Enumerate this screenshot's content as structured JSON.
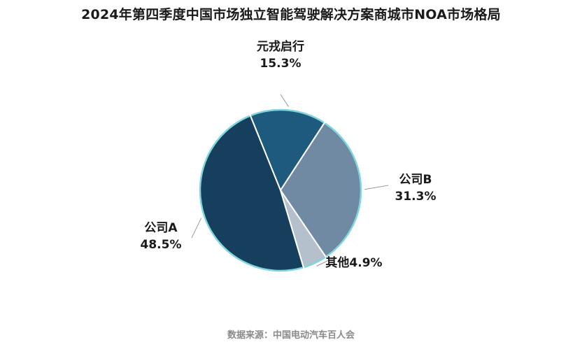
{
  "title": "2024年第四季度中国市场独立智能驾驶解决方案商城市NOA市场格局",
  "source": "数据来源：中国电动汽车百人会",
  "chart_data": {
    "type": "pie",
    "title": "2024年第四季度中国市场独立智能驾驶解决方案商城市NOA市场格局",
    "slices": [
      {
        "name": "元戎启行",
        "value": 15.3,
        "value_label": "15.3%",
        "color": "#1d5a7d"
      },
      {
        "name": "公司B",
        "value": 31.3,
        "value_label": "31.3%",
        "color": "#6f8aa2"
      },
      {
        "name": "其他",
        "value": 4.9,
        "value_label": "4.9%",
        "color": "#b4c0cb"
      },
      {
        "name": "公司A",
        "value": 48.5,
        "value_label": "48.5%",
        "color": "#153f5c"
      }
    ],
    "start_angle_deg": -22,
    "direction": "clockwise",
    "rim_color": "#7fd6df",
    "legend": "none"
  }
}
